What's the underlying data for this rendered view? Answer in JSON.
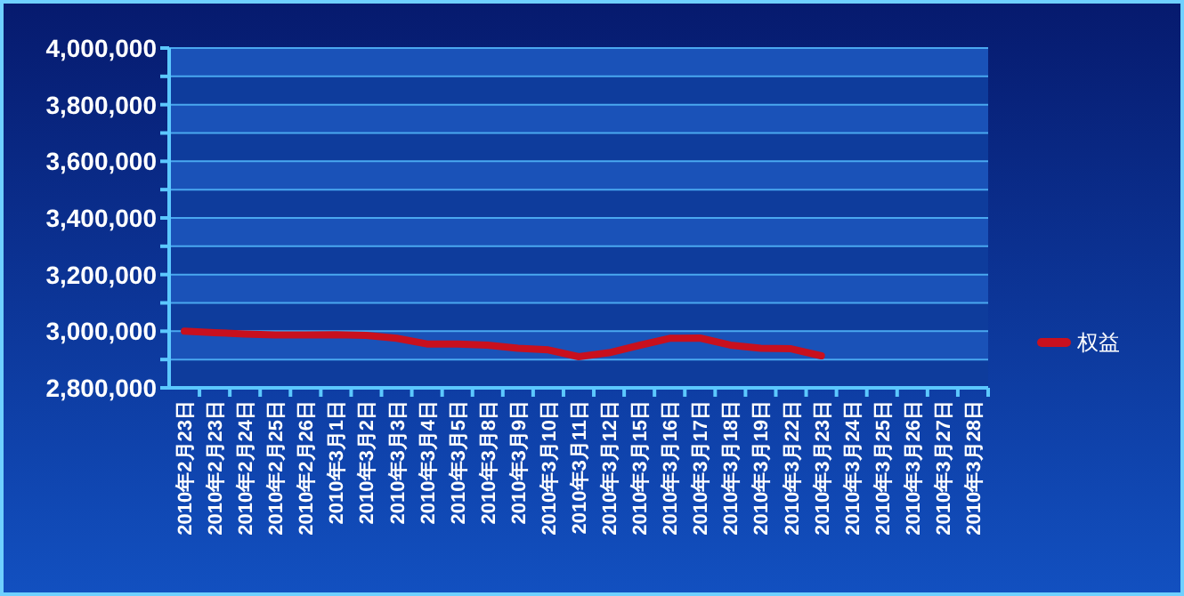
{
  "chart_data": {
    "type": "line",
    "categories": [
      "2010年2月23日",
      "2010年2月23日",
      "2010年2月24日",
      "2010年2月25日",
      "2010年2月26日",
      "2010年3月1日",
      "2010年3月2日",
      "2010年3月3日",
      "2010年3月4日",
      "2010年3月5日",
      "2010年3月8日",
      "2010年3月9日",
      "2010年3月10日",
      "2010年3月11日",
      "2010年3月12日",
      "2010年3月15日",
      "2010年3月16日",
      "2010年3月17日",
      "2010年3月18日",
      "2010年3月19日",
      "2010年3月22日",
      "2010年3月23日",
      "2010年3月24日",
      "2010年3月25日",
      "2010年3月26日",
      "2010年3月27日",
      "2010年3月28日"
    ],
    "series": [
      {
        "name": "权益",
        "color": "#c8101e",
        "values": [
          3000000,
          2995000,
          2990000,
          2987000,
          2987000,
          2988000,
          2985000,
          2975000,
          2955000,
          2955000,
          2951000,
          2940000,
          2934000,
          2910000,
          2924000,
          2950000,
          2975000,
          2976000,
          2951000,
          2940000,
          2938000,
          2913000,
          null,
          null,
          null,
          null,
          null
        ]
      }
    ],
    "ylim": [
      2800000,
      4000000
    ],
    "yticks": [
      {
        "value": 2800000,
        "label": "2,800,000"
      },
      {
        "value": 2900000,
        "label": null
      },
      {
        "value": 3000000,
        "label": "3,000,000"
      },
      {
        "value": 3100000,
        "label": null
      },
      {
        "value": 3200000,
        "label": "3,200,000"
      },
      {
        "value": 3300000,
        "label": null
      },
      {
        "value": 3400000,
        "label": "3,400,000"
      },
      {
        "value": 3500000,
        "label": null
      },
      {
        "value": 3600000,
        "label": "3,600,000"
      },
      {
        "value": 3700000,
        "label": null
      },
      {
        "value": 3800000,
        "label": "3,800,000"
      },
      {
        "value": 3900000,
        "label": null
      },
      {
        "value": 4000000,
        "label": "4,000,000"
      }
    ],
    "grid": "y",
    "legend": "right",
    "marker": "none",
    "line_style": "solid"
  }
}
